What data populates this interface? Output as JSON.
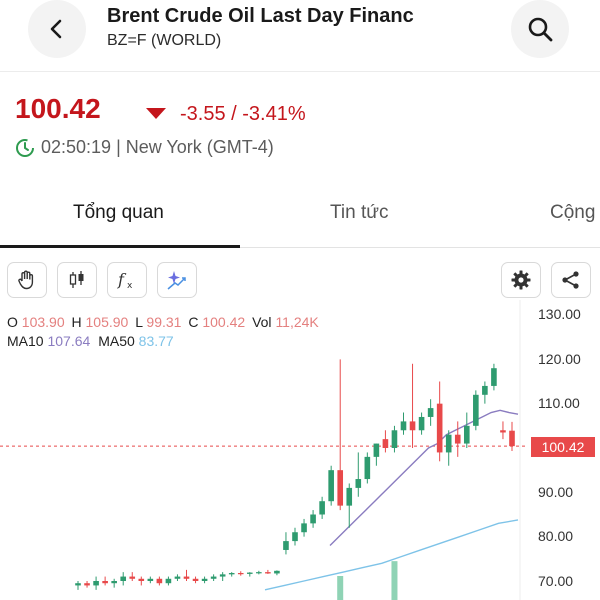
{
  "header": {
    "title": "Brent Crude Oil Last Day Financ",
    "subtitle": "BZ=F (WORLD)",
    "back_icon": "chevron-left-icon",
    "search_icon": "search-icon"
  },
  "quote": {
    "price": "100.42",
    "change": "-3.55 / -3.41%",
    "time": "02:50:19 | New York (GMT-4)",
    "direction_icon": "triangle-down-icon",
    "color_down": "#c4161c"
  },
  "tabs": [
    {
      "label": "Tổng quan",
      "active": true
    },
    {
      "label": "Tin tức",
      "active": false
    },
    {
      "label": "Cộng",
      "active": false
    }
  ],
  "toolbar": {
    "left_tools": [
      "hand-icon",
      "candlestick-icon",
      "function-icon",
      "sparkle-icon"
    ],
    "right_tools": [
      "gear-icon",
      "share-icon"
    ]
  },
  "ohlc": {
    "o_label": "O",
    "o": "103.90",
    "h_label": "H",
    "h": "105.90",
    "l_label": "L",
    "l": "99.31",
    "c_label": "C",
    "c": "100.42",
    "vol_label": "Vol",
    "vol": "11,24K"
  },
  "ma": {
    "ma10_label": "MA10",
    "ma10": "107.64",
    "ma50_label": "MA50",
    "ma50": "83.77"
  },
  "chart": {
    "y_ticks": [
      "130.00",
      "120.00",
      "110.00",
      "100.00",
      "90.00",
      "80.00",
      "70.00"
    ],
    "current_price_tag": "100.42",
    "up_color": "#2e9b6f",
    "down_color": "#e8494a"
  },
  "chart_data": {
    "type": "candlestick",
    "ylim": [
      66,
      131
    ],
    "candles": [
      {
        "o": 69,
        "h": 70,
        "l": 68,
        "c": 69.5
      },
      {
        "o": 69.5,
        "h": 70,
        "l": 68.5,
        "c": 69
      },
      {
        "o": 69,
        "h": 71,
        "l": 68,
        "c": 70
      },
      {
        "o": 70,
        "h": 71,
        "l": 69,
        "c": 69.5
      },
      {
        "o": 69.5,
        "h": 70.5,
        "l": 68.5,
        "c": 70
      },
      {
        "o": 70,
        "h": 72,
        "l": 69,
        "c": 71
      },
      {
        "o": 71,
        "h": 72,
        "l": 70,
        "c": 70.5
      },
      {
        "o": 70.5,
        "h": 71,
        "l": 69,
        "c": 70
      },
      {
        "o": 70,
        "h": 71,
        "l": 69.5,
        "c": 70.5
      },
      {
        "o": 70.5,
        "h": 71,
        "l": 69,
        "c": 69.5
      },
      {
        "o": 69.5,
        "h": 71,
        "l": 69,
        "c": 70.5
      },
      {
        "o": 70.5,
        "h": 71.5,
        "l": 70,
        "c": 71
      },
      {
        "o": 71,
        "h": 72.5,
        "l": 70,
        "c": 70.5
      },
      {
        "o": 70.5,
        "h": 71,
        "l": 69.5,
        "c": 70
      },
      {
        "o": 70,
        "h": 71,
        "l": 69.5,
        "c": 70.5
      },
      {
        "o": 70.5,
        "h": 71.5,
        "l": 70,
        "c": 71
      },
      {
        "o": 71,
        "h": 72,
        "l": 70,
        "c": 71.5
      },
      {
        "o": 71.5,
        "h": 72,
        "l": 71,
        "c": 71.8
      },
      {
        "o": 71.8,
        "h": 72.2,
        "l": 71.2,
        "c": 71.6
      },
      {
        "o": 71.6,
        "h": 72,
        "l": 71,
        "c": 71.9
      },
      {
        "o": 71.9,
        "h": 72.3,
        "l": 71.5,
        "c": 72
      },
      {
        "o": 72,
        "h": 72.5,
        "l": 71.6,
        "c": 71.7
      },
      {
        "o": 71.7,
        "h": 72.4,
        "l": 71.3,
        "c": 72.3
      },
      {
        "o": 77,
        "h": 81,
        "l": 76,
        "c": 79
      },
      {
        "o": 79,
        "h": 82,
        "l": 78,
        "c": 81
      },
      {
        "o": 81,
        "h": 84,
        "l": 80,
        "c": 83
      },
      {
        "o": 83,
        "h": 86,
        "l": 82,
        "c": 85
      },
      {
        "o": 85,
        "h": 89,
        "l": 84,
        "c": 88
      },
      {
        "o": 88,
        "h": 96,
        "l": 87,
        "c": 95
      },
      {
        "o": 95,
        "h": 120,
        "l": 86,
        "c": 87
      },
      {
        "o": 87,
        "h": 92,
        "l": 82,
        "c": 91
      },
      {
        "o": 91,
        "h": 99,
        "l": 89,
        "c": 93
      },
      {
        "o": 93,
        "h": 99,
        "l": 92,
        "c": 98
      },
      {
        "o": 98,
        "h": 101,
        "l": 96,
        "c": 101
      },
      {
        "o": 102,
        "h": 104,
        "l": 99,
        "c": 100
      },
      {
        "o": 100,
        "h": 105,
        "l": 99,
        "c": 104
      },
      {
        "o": 104,
        "h": 108,
        "l": 103,
        "c": 106
      },
      {
        "o": 106,
        "h": 119,
        "l": 100,
        "c": 104
      },
      {
        "o": 104,
        "h": 108,
        "l": 103,
        "c": 107
      },
      {
        "o": 107,
        "h": 111,
        "l": 105,
        "c": 109
      },
      {
        "o": 110,
        "h": 115,
        "l": 97,
        "c": 99
      },
      {
        "o": 99,
        "h": 104,
        "l": 96,
        "c": 103
      },
      {
        "o": 103,
        "h": 106,
        "l": 98,
        "c": 101
      },
      {
        "o": 101,
        "h": 108,
        "l": 100,
        "c": 105
      },
      {
        "o": 105,
        "h": 113,
        "l": 104,
        "c": 112
      },
      {
        "o": 112,
        "h": 115,
        "l": 110,
        "c": 114
      },
      {
        "o": 114,
        "h": 119,
        "l": 113,
        "c": 118
      },
      {
        "o": 104,
        "h": 106,
        "l": 102,
        "c": 103.5
      },
      {
        "o": 103.9,
        "h": 105.9,
        "l": 99.31,
        "c": 100.42
      }
    ],
    "ma10": [
      78,
      80,
      82,
      84,
      86,
      88,
      90,
      92,
      94,
      96,
      98,
      100,
      101,
      103,
      104,
      105,
      106,
      107,
      108,
      108.5,
      108,
      107.64
    ],
    "ma50": [
      68,
      69,
      70,
      71,
      72,
      73,
      74,
      75.5,
      77,
      78.5,
      80,
      81.5,
      83,
      83.77
    ],
    "volume": [
      0,
      0,
      0,
      0,
      0,
      0,
      0,
      0,
      0,
      0,
      0,
      0,
      0,
      0,
      0,
      0,
      0,
      0,
      0,
      0,
      0,
      0,
      0,
      0,
      0,
      0,
      0,
      0,
      0,
      4200,
      0,
      0,
      0,
      0,
      0,
      6800,
      0,
      0,
      0,
      0,
      0,
      0,
      0,
      0,
      0,
      0,
      0,
      0,
      0
    ]
  }
}
